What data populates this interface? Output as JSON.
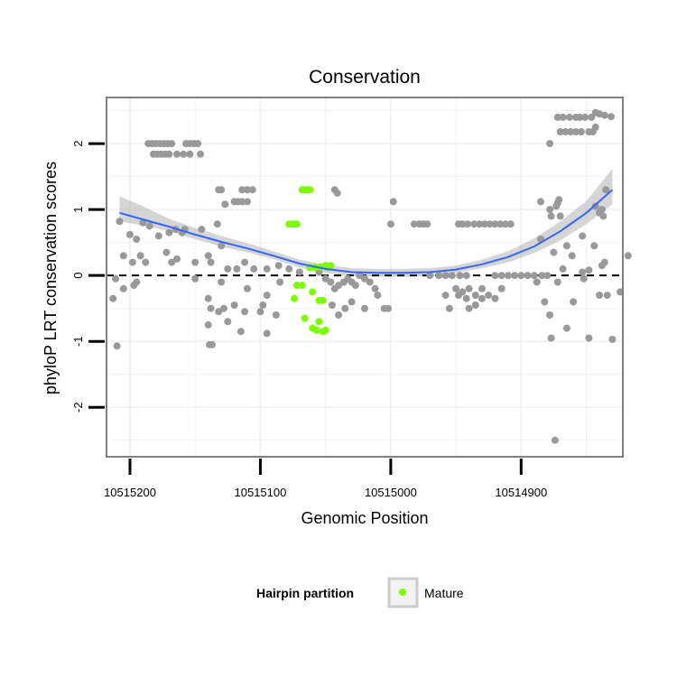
{
  "chart_data": {
    "type": "scatter",
    "title": "Conservation",
    "xlabel": "Genomic Position",
    "ylabel": "phyloP LRT conservation scores",
    "x_reversed": true,
    "xlim": [
      10515218,
      10514822
    ],
    "ylim": [
      -2.75,
      2.7
    ],
    "x_ticks": [
      10515200,
      10515100,
      10515000,
      10514900
    ],
    "y_ticks": [
      2,
      1,
      0,
      -1,
      -2
    ],
    "y_tick_labels": [
      "2",
      "1",
      "0",
      "-1",
      "-2"
    ],
    "grid": true,
    "reference_line": 0,
    "legend": {
      "title": "Hairpin partition",
      "entries": [
        {
          "label": "Mature",
          "color": "#7cfc00"
        }
      ],
      "placement": "bottom"
    },
    "colors": {
      "points": "#999999",
      "mature": "#7cfc00",
      "trend": "#3366ff",
      "band": "#b3b3b3",
      "panel_border": "#808080",
      "grid": "#f2f2f2"
    },
    "series": [
      {
        "color": "#999999",
        "points": [
          [
            10515186,
            2.0
          ],
          [
            10515183,
            2.0
          ],
          [
            10515180,
            2.0
          ],
          [
            10515177,
            2.0
          ],
          [
            10515174,
            2.0
          ],
          [
            10515171,
            2.0
          ],
          [
            10515168,
            2.0
          ],
          [
            10515157,
            2.0
          ],
          [
            10515154,
            2.0
          ],
          [
            10515151,
            2.0
          ],
          [
            10515148,
            2.0
          ],
          [
            10515182,
            1.84
          ],
          [
            10515179,
            1.84
          ],
          [
            10515176,
            1.84
          ],
          [
            10515173,
            1.84
          ],
          [
            10515170,
            1.84
          ],
          [
            10515164,
            1.84
          ],
          [
            10515159,
            1.84
          ],
          [
            10515154,
            1.84
          ],
          [
            10515146,
            1.84
          ],
          [
            10515132,
            1.3
          ],
          [
            10515130,
            1.3
          ],
          [
            10515114,
            1.3
          ],
          [
            10515110,
            1.3
          ],
          [
            10515106,
            1.3
          ],
          [
            10515127,
            1.08
          ],
          [
            10515120,
            1.12
          ],
          [
            10515117,
            1.12
          ],
          [
            10515114,
            1.12
          ],
          [
            10515110,
            1.12
          ],
          [
            10515043,
            1.3
          ],
          [
            10515041,
            1.25
          ],
          [
            10514998,
            1.12
          ],
          [
            10515133,
            0.78
          ],
          [
            10515190,
            0.8
          ],
          [
            10515185,
            0.75
          ],
          [
            10515158,
            0.7
          ],
          [
            10515165,
            0.7
          ],
          [
            10515170,
            0.65
          ],
          [
            10515145,
            0.7
          ],
          [
            10515000,
            0.78
          ],
          [
            10514982,
            0.78
          ],
          [
            10514978,
            0.78
          ],
          [
            10514975,
            0.78
          ],
          [
            10514972,
            0.78
          ],
          [
            10514948,
            0.78
          ],
          [
            10514945,
            0.78
          ],
          [
            10514941,
            0.78
          ],
          [
            10514936,
            0.78
          ],
          [
            10514932,
            0.78
          ],
          [
            10514928,
            0.78
          ],
          [
            10514924,
            0.78
          ],
          [
            10514920,
            0.78
          ],
          [
            10514916,
            0.78
          ],
          [
            10514912,
            0.78
          ],
          [
            10514908,
            0.78
          ],
          [
            10514885,
            1.12
          ],
          [
            10514878,
            1.0
          ],
          [
            10514873,
            1.05
          ],
          [
            10514843,
            1.05
          ],
          [
            10514838,
            1.0
          ],
          [
            10514835,
            1.3
          ],
          [
            10514872,
            1.1
          ],
          [
            10514871,
            1.15
          ],
          [
            10514840,
            0.95
          ],
          [
            10514837,
            0.9
          ],
          [
            10515208,
            0.82
          ],
          [
            10515200,
            0.62
          ],
          [
            10515195,
            0.55
          ],
          [
            10515192,
            0.3
          ],
          [
            10515178,
            0.6
          ],
          [
            10515172,
            0.35
          ],
          [
            10515160,
            0.65
          ],
          [
            10515140,
            0.3
          ],
          [
            10515130,
            0.45
          ],
          [
            10515112,
            0.2
          ],
          [
            10515205,
            0.3
          ],
          [
            10515198,
            0.2
          ],
          [
            10515188,
            0.2
          ],
          [
            10515168,
            0.2
          ],
          [
            10515164,
            0.25
          ],
          [
            10515150,
            0.2
          ],
          [
            10515138,
            0.2
          ],
          [
            10515125,
            0.1
          ],
          [
            10515118,
            0.1
          ],
          [
            10515105,
            0.1
          ],
          [
            10515095,
            0.1
          ],
          [
            10515086,
            0.15
          ],
          [
            10515078,
            0.1
          ],
          [
            10515070,
            0.05
          ],
          [
            10515205,
            -0.2
          ],
          [
            10515197,
            -0.15
          ],
          [
            10515211,
            -0.05
          ],
          [
            10515150,
            -0.05
          ],
          [
            10515130,
            -0.1
          ],
          [
            10515110,
            -0.2
          ],
          [
            10515095,
            -0.3
          ],
          [
            10515085,
            -0.1
          ],
          [
            10515213,
            -0.35
          ],
          [
            10515195,
            -0.1
          ],
          [
            10515140,
            -0.35
          ],
          [
            10515132,
            -0.55
          ],
          [
            10515128,
            -0.5
          ],
          [
            10515120,
            -0.45
          ],
          [
            10515112,
            -0.55
          ],
          [
            10515100,
            -0.55
          ],
          [
            10515098,
            -0.45
          ],
          [
            10515140,
            -0.75
          ],
          [
            10515138,
            -0.5
          ],
          [
            10515125,
            -0.7
          ],
          [
            10515115,
            -0.85
          ],
          [
            10515095,
            -0.88
          ],
          [
            10515088,
            -0.6
          ],
          [
            10515210,
            -1.07
          ],
          [
            10515139,
            -1.05
          ],
          [
            10515137,
            -1.05
          ],
          [
            10515055,
            0.05
          ],
          [
            10515050,
            -0.05
          ],
          [
            10515046,
            -0.1
          ],
          [
            10515043,
            -0.2
          ],
          [
            10515040,
            -0.15
          ],
          [
            10515036,
            -0.1
          ],
          [
            10515033,
            -0.05
          ],
          [
            10515030,
            -0.1
          ],
          [
            10515027,
            -0.15
          ],
          [
            10515024,
            0.0
          ],
          [
            10515020,
            -0.05
          ],
          [
            10515016,
            -0.1
          ],
          [
            10515012,
            -0.2
          ],
          [
            10515045,
            -0.45
          ],
          [
            10515040,
            -0.6
          ],
          [
            10515035,
            -0.5
          ],
          [
            10515030,
            -0.4
          ],
          [
            10515020,
            -0.5
          ],
          [
            10515010,
            -0.3
          ],
          [
            10515005,
            -0.5
          ],
          [
            10515002,
            -0.5
          ],
          [
            10514970,
            0.0
          ],
          [
            10514963,
            0.0
          ],
          [
            10514958,
            0.0
          ],
          [
            10514953,
            0.0
          ],
          [
            10514947,
            0.0
          ],
          [
            10514942,
            0.0
          ],
          [
            10514920,
            0.0
          ],
          [
            10514915,
            0.0
          ],
          [
            10514910,
            0.0
          ],
          [
            10514905,
            0.0
          ],
          [
            10514900,
            0.0
          ],
          [
            10514895,
            0.0
          ],
          [
            10514890,
            0.0
          ],
          [
            10514884,
            0.0
          ],
          [
            10514880,
            0.0
          ],
          [
            10514950,
            -0.2
          ],
          [
            10514945,
            -0.25
          ],
          [
            10514940,
            -0.2
          ],
          [
            10514935,
            -0.3
          ],
          [
            10514930,
            -0.2
          ],
          [
            10514925,
            -0.3
          ],
          [
            10514940,
            -0.5
          ],
          [
            10514935,
            -0.45
          ],
          [
            10514920,
            -0.35
          ],
          [
            10514915,
            -0.2
          ],
          [
            10514958,
            -0.3
          ],
          [
            10514955,
            -0.5
          ],
          [
            10514948,
            -0.3
          ],
          [
            10514942,
            -0.35
          ],
          [
            10514930,
            -0.35
          ],
          [
            10514888,
            -0.1
          ],
          [
            10514882,
            -0.4
          ],
          [
            10514878,
            -0.6
          ],
          [
            10514872,
            -0.1
          ],
          [
            10514868,
            0.1
          ],
          [
            10514861,
            0.3
          ],
          [
            10514853,
            0.05
          ],
          [
            10514852,
            -0.05
          ],
          [
            10514848,
            0.08
          ],
          [
            10514875,
            0.35
          ],
          [
            10514865,
            0.45
          ],
          [
            10514853,
            0.6
          ],
          [
            10514844,
            0.45
          ],
          [
            10514838,
            0.15
          ],
          [
            10514836,
            0.2
          ],
          [
            10514840,
            -0.3
          ],
          [
            10514834,
            -0.3
          ],
          [
            10514860,
            -0.4
          ],
          [
            10514885,
            0.55
          ],
          [
            10514877,
            0.9
          ],
          [
            10514870,
            0.9
          ],
          [
            10514865,
            -0.8
          ],
          [
            10514877,
            -0.95
          ],
          [
            10514848,
            -0.95
          ],
          [
            10514830,
            -0.97
          ],
          [
            10514818,
            0.3
          ],
          [
            10514824,
            -0.25
          ],
          [
            10514878,
            2.0
          ],
          [
            10514872,
            2.4
          ],
          [
            10514868,
            2.4
          ],
          [
            10514863,
            2.4
          ],
          [
            10514858,
            2.4
          ],
          [
            10514855,
            2.4
          ],
          [
            10514851,
            2.4
          ],
          [
            10514846,
            2.4
          ],
          [
            10514843,
            2.47
          ],
          [
            10514840,
            2.45
          ],
          [
            10514836,
            2.43
          ],
          [
            10514831,
            2.41
          ],
          [
            10514870,
            2.18
          ],
          [
            10514866,
            2.18
          ],
          [
            10514862,
            2.18
          ],
          [
            10514858,
            2.18
          ],
          [
            10514854,
            2.18
          ],
          [
            10514848,
            2.18
          ],
          [
            10514845,
            2.18
          ],
          [
            10514843,
            2.25
          ],
          [
            10514874,
            -2.5
          ]
        ]
      },
      {
        "name": "Mature",
        "color": "#7cfc00",
        "points": [
          [
            10515068,
            1.3
          ],
          [
            10515066,
            1.3
          ],
          [
            10515064,
            1.3
          ],
          [
            10515062,
            1.3
          ],
          [
            10515078,
            0.78
          ],
          [
            10515076,
            0.78
          ],
          [
            10515074,
            0.78
          ],
          [
            10515072,
            0.78
          ],
          [
            10515062,
            0.12
          ],
          [
            10515058,
            0.12
          ],
          [
            10515054,
            0.13
          ],
          [
            10515050,
            0.15
          ],
          [
            10515048,
            0.12
          ],
          [
            10515046,
            0.15
          ],
          [
            10515072,
            -0.15
          ],
          [
            10515068,
            -0.15
          ],
          [
            10515060,
            -0.25
          ],
          [
            10515055,
            -0.38
          ],
          [
            10515052,
            -0.38
          ],
          [
            10515074,
            -0.35
          ],
          [
            10515066,
            -0.65
          ],
          [
            10515060,
            -0.8
          ],
          [
            10515057,
            -0.83
          ],
          [
            10515052,
            -0.85
          ],
          [
            10515050,
            -0.83
          ],
          [
            10515055,
            -0.7
          ]
        ]
      }
    ],
    "trend": {
      "x": [
        10515208,
        10515190,
        10515170,
        10515150,
        10515130,
        10515110,
        10515090,
        10515070,
        10515050,
        10515030,
        10515010,
        10514990,
        10514970,
        10514950,
        10514930,
        10514910,
        10514890,
        10514870,
        10514850,
        10514830
      ],
      "y": [
        0.95,
        0.85,
        0.74,
        0.62,
        0.51,
        0.41,
        0.3,
        0.18,
        0.1,
        0.05,
        0.04,
        0.04,
        0.05,
        0.09,
        0.17,
        0.28,
        0.44,
        0.67,
        0.95,
        1.3
      ],
      "lower": [
        0.82,
        0.76,
        0.67,
        0.55,
        0.44,
        0.35,
        0.25,
        0.12,
        0.04,
        -0.01,
        -0.02,
        -0.02,
        -0.01,
        0.04,
        0.11,
        0.2,
        0.34,
        0.53,
        0.78,
        1.08
      ],
      "upper": [
        1.2,
        1.05,
        0.86,
        0.72,
        0.6,
        0.49,
        0.37,
        0.24,
        0.16,
        0.11,
        0.1,
        0.1,
        0.11,
        0.15,
        0.24,
        0.37,
        0.56,
        0.82,
        1.13,
        1.62
      ]
    }
  }
}
